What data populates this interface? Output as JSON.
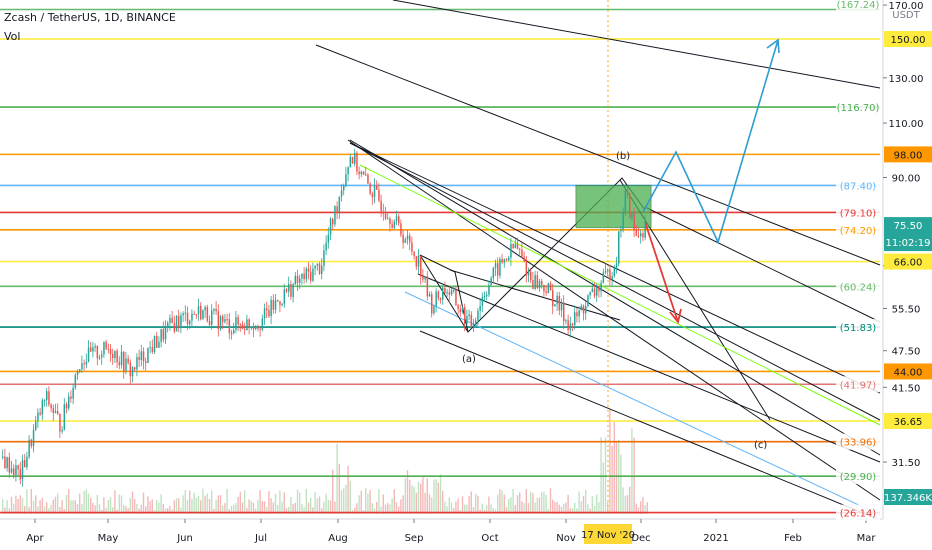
{
  "header": {
    "symbol": "Zcash / TetherUS, 1D, BINANCE",
    "indicator": "Vol"
  },
  "chart_data": {
    "type": "candlestick",
    "title": "Zcash / TetherUS, 1D, BINANCE",
    "y_unit": "USDT",
    "y_scale": "log",
    "y_range": [
      28,
      172
    ],
    "price_axis_ticks": [
      170.0,
      130.0,
      110.0,
      90.0,
      65.0,
      55.5,
      47.5,
      41.5,
      31.5
    ],
    "time_axis_labels": [
      "Apr",
      "May",
      "Jun",
      "Jul",
      "Aug",
      "Sep",
      "Oct",
      "Nov",
      "Dec",
      "2021",
      "Feb",
      "Mar"
    ],
    "crosshair_date_label": "17 Nov '20",
    "price_levels": [
      {
        "value": 167.24,
        "label": "(167.24)",
        "color": "#66bb6a",
        "boxed": false
      },
      {
        "value": 150.0,
        "label": "150.00",
        "color": "#ffeb3b",
        "boxed": true
      },
      {
        "value": 116.7,
        "label": "(116.70)",
        "color": "#4caf50",
        "boxed": false
      },
      {
        "value": 98.0,
        "label": "98.00",
        "color": "#ff9800",
        "boxed": true
      },
      {
        "value": 87.4,
        "label": "(87.40)",
        "color": "#64b5f6",
        "boxed": false
      },
      {
        "value": 79.1,
        "label": "(79.10)",
        "color": "#e53935",
        "boxed": false
      },
      {
        "value": 74.2,
        "label": "(74.20)",
        "color": "#ff9800",
        "boxed": false
      },
      {
        "value": 66.0,
        "label": "66.00",
        "color": "#ffeb3b",
        "boxed": true
      },
      {
        "value": 60.24,
        "label": "(60.24)",
        "color": "#66bb6a",
        "boxed": false
      },
      {
        "value": 51.83,
        "label": "(51.83)",
        "color": "#00897b",
        "boxed": false
      },
      {
        "value": 44.0,
        "label": "44.00",
        "color": "#ff9800",
        "boxed": true
      },
      {
        "value": 41.97,
        "label": "(41.97)",
        "color": "#e57373",
        "boxed": false
      },
      {
        "value": 36.65,
        "label": "36.65",
        "color": "#ffeb3b",
        "boxed": true
      },
      {
        "value": 33.96,
        "label": "(33.96)",
        "color": "#ef6c00",
        "boxed": false
      },
      {
        "value": 29.9,
        "label": "(29.90)",
        "color": "#4caf50",
        "boxed": false
      },
      {
        "value": 26.14,
        "label": "(26.14)",
        "color": "#e53935",
        "boxed": false
      }
    ],
    "current_price": {
      "value": 75.5,
      "label": "75.50",
      "countdown": "11:02:19",
      "color": "#26a69a"
    },
    "volume_label": {
      "value": "137.346K",
      "color": "#26a69a"
    },
    "wave_labels": [
      "(a)",
      "(b)",
      "(c)"
    ],
    "colors": {
      "up": "#26a69a",
      "down": "#ef5350",
      "projection_blue": "#2e9ccf",
      "projection_red": "#e53935"
    }
  }
}
